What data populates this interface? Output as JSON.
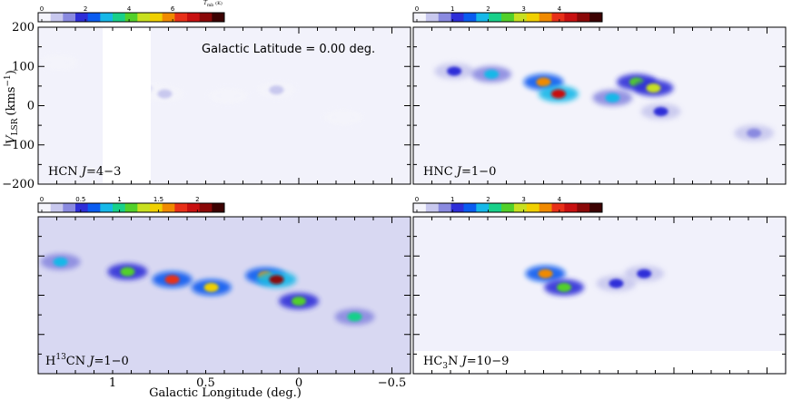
{
  "figure": {
    "caption_latitude": "Galactic Latitude = 0.00 deg.",
    "xlabel": "Galactic Longitude (deg.)",
    "ylabel_main": "V",
    "ylabel_sub": "LSR",
    "ylabel_unit": "(kms",
    "ylabel_unit_exp": "−1",
    "ylabel_unit_close": ")",
    "colorbar_unit_main": "T",
    "colorbar_unit_sub": "mb",
    "colorbar_unit_paren": "(K)"
  },
  "chart_data": [
    {
      "type": "heatmap",
      "panel": "top-left",
      "label": "HCN J=4−3",
      "label_parts": [
        "HCN ",
        "J",
        "=4−3"
      ],
      "xlim": [
        1.4,
        -0.6
      ],
      "ylim": [
        -200,
        200
      ],
      "yticks": [
        200,
        100,
        0,
        -100,
        -200
      ],
      "ytick_labels": [
        "200",
        "100",
        "0",
        "−100",
        "−200"
      ],
      "colorbar": {
        "ticks": [
          0,
          2,
          4,
          6
        ],
        "labels": [
          "0",
          "2",
          "4",
          "6"
        ],
        "max": 8.2
      },
      "unobserved_l_range": [
        1.2,
        1.0
      ],
      "emission_blobs": [
        {
          "l": 1.29,
          "v": 110,
          "t": 0.3
        },
        {
          "l": 0.82,
          "v": 40,
          "t": 0.8
        },
        {
          "l": 0.72,
          "v": 30,
          "t": 0.6
        },
        {
          "l": 0.38,
          "v": 25,
          "t": 0.5
        },
        {
          "l": 0.12,
          "v": 40,
          "t": 1.0
        },
        {
          "l": -0.24,
          "v": -30,
          "t": 0.4
        }
      ]
    },
    {
      "type": "heatmap",
      "panel": "top-right",
      "label": "HNC J=1−0",
      "label_parts": [
        "HNC ",
        "J",
        "=1−0"
      ],
      "xlim": [
        1.4,
        -0.6
      ],
      "ylim": [
        -200,
        200
      ],
      "colorbar": {
        "ticks": [
          0,
          1,
          2,
          3,
          4
        ],
        "labels": [
          "0",
          "1",
          "2",
          "3",
          "4"
        ],
        "max": 5.1
      },
      "emission_blobs": [
        {
          "l": 1.18,
          "v": 88,
          "t": 1.3
        },
        {
          "l": 0.98,
          "v": 80,
          "t": 2.0
        },
        {
          "l": 0.7,
          "v": 60,
          "t": 3.4
        },
        {
          "l": 0.62,
          "v": 30,
          "t": 4.2
        },
        {
          "l": 0.33,
          "v": 20,
          "t": 1.8
        },
        {
          "l": 0.2,
          "v": 60,
          "t": 2.6
        },
        {
          "l": 0.11,
          "v": 45,
          "t": 3.0
        },
        {
          "l": 0.07,
          "v": -15,
          "t": 1.2
        },
        {
          "l": -0.43,
          "v": -70,
          "t": 0.9
        }
      ]
    },
    {
      "type": "heatmap",
      "panel": "bottom-left",
      "label": "H13CN J=1−0",
      "label_parts": [
        "H",
        "13",
        "CN ",
        "J",
        "=1−0"
      ],
      "xlim": [
        1.4,
        -0.6
      ],
      "ylim": [
        -200,
        200
      ],
      "xticks": [
        1,
        0.5,
        0,
        -0.5
      ],
      "xtick_labels": [
        "1",
        "0.5",
        "0",
        "−0.5"
      ],
      "colorbar": {
        "ticks": [
          0,
          0.5,
          1,
          1.5,
          2
        ],
        "labels": [
          "0",
          "0.5",
          "1",
          "1.5",
          "2"
        ],
        "max": 2.3
      },
      "emission_blobs": [
        {
          "l": 1.28,
          "v": 85,
          "t": 0.9
        },
        {
          "l": 0.92,
          "v": 60,
          "t": 1.2
        },
        {
          "l": 0.68,
          "v": 40,
          "t": 1.7
        },
        {
          "l": 0.47,
          "v": 20,
          "t": 1.4
        },
        {
          "l": 0.18,
          "v": 50,
          "t": 1.6
        },
        {
          "l": 0.12,
          "v": 40,
          "t": 2.0
        },
        {
          "l": 0.0,
          "v": -15,
          "t": 1.1
        },
        {
          "l": -0.3,
          "v": -55,
          "t": 1.0
        }
      ]
    },
    {
      "type": "heatmap",
      "panel": "bottom-right",
      "label": "HC3N J=10−9",
      "label_parts": [
        "HC",
        "3",
        "N ",
        "J",
        "=10−9"
      ],
      "xlim": [
        1.4,
        -0.6
      ],
      "ylim": [
        -200,
        200
      ],
      "colorbar": {
        "ticks": [
          0,
          1,
          2,
          3,
          4
        ],
        "labels": [
          "0",
          "1",
          "2",
          "3",
          "4"
        ],
        "max": 5.1
      },
      "emission_blobs": [
        {
          "l": 0.69,
          "v": 55,
          "t": 3.4
        },
        {
          "l": 0.59,
          "v": 20,
          "t": 2.5
        },
        {
          "l": 0.31,
          "v": 30,
          "t": 1.2
        },
        {
          "l": 0.16,
          "v": 55,
          "t": 1.3
        }
      ]
    }
  ]
}
